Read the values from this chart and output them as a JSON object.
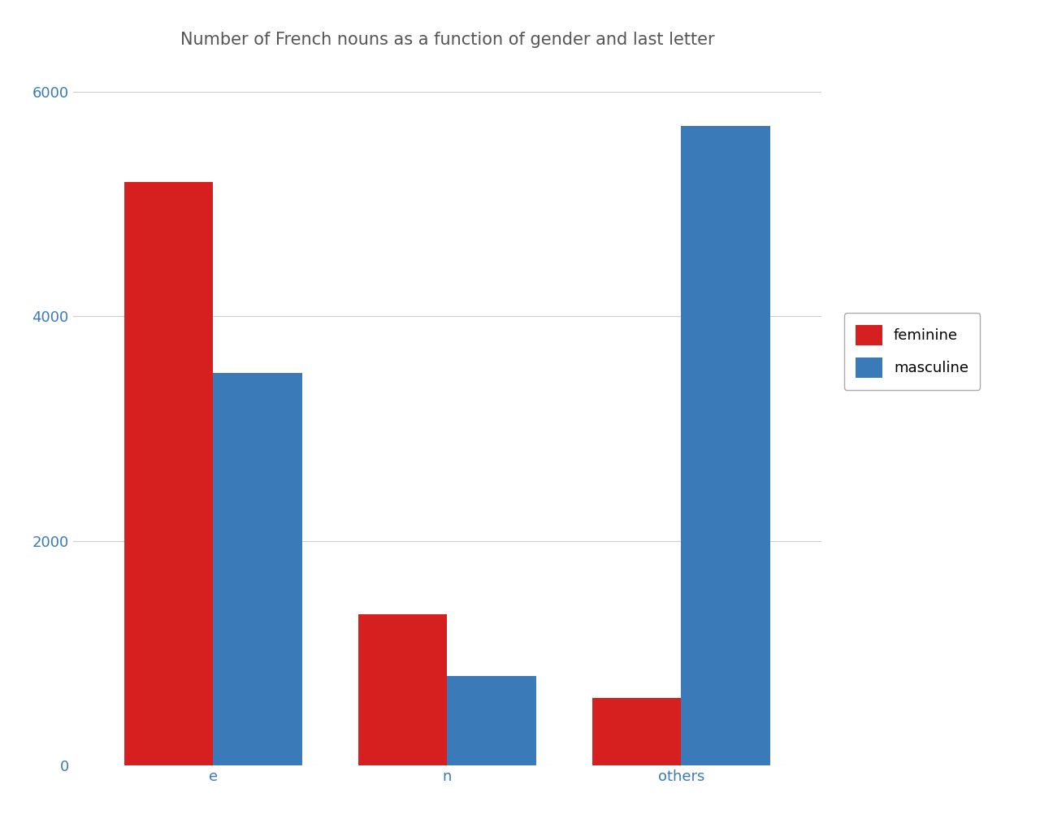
{
  "title": "Number of French nouns as a function of gender and last letter",
  "categories": [
    "e",
    "n",
    "others"
  ],
  "feminine": [
    5200,
    1350,
    600
  ],
  "masculine": [
    3500,
    800,
    5700
  ],
  "feminine_color": "#d62020",
  "masculine_color": "#3a7ab8",
  "legend_labels": [
    "feminine",
    "masculine"
  ],
  "ylim": [
    0,
    6300
  ],
  "yticks": [
    0,
    2000,
    4000,
    6000
  ],
  "background_color": "#ffffff",
  "grid_color": "#cccccc",
  "title_color": "#555555",
  "tick_color": "#3a7ab8",
  "label_color": "#000000",
  "bar_width": 0.38,
  "title_fontsize": 15
}
